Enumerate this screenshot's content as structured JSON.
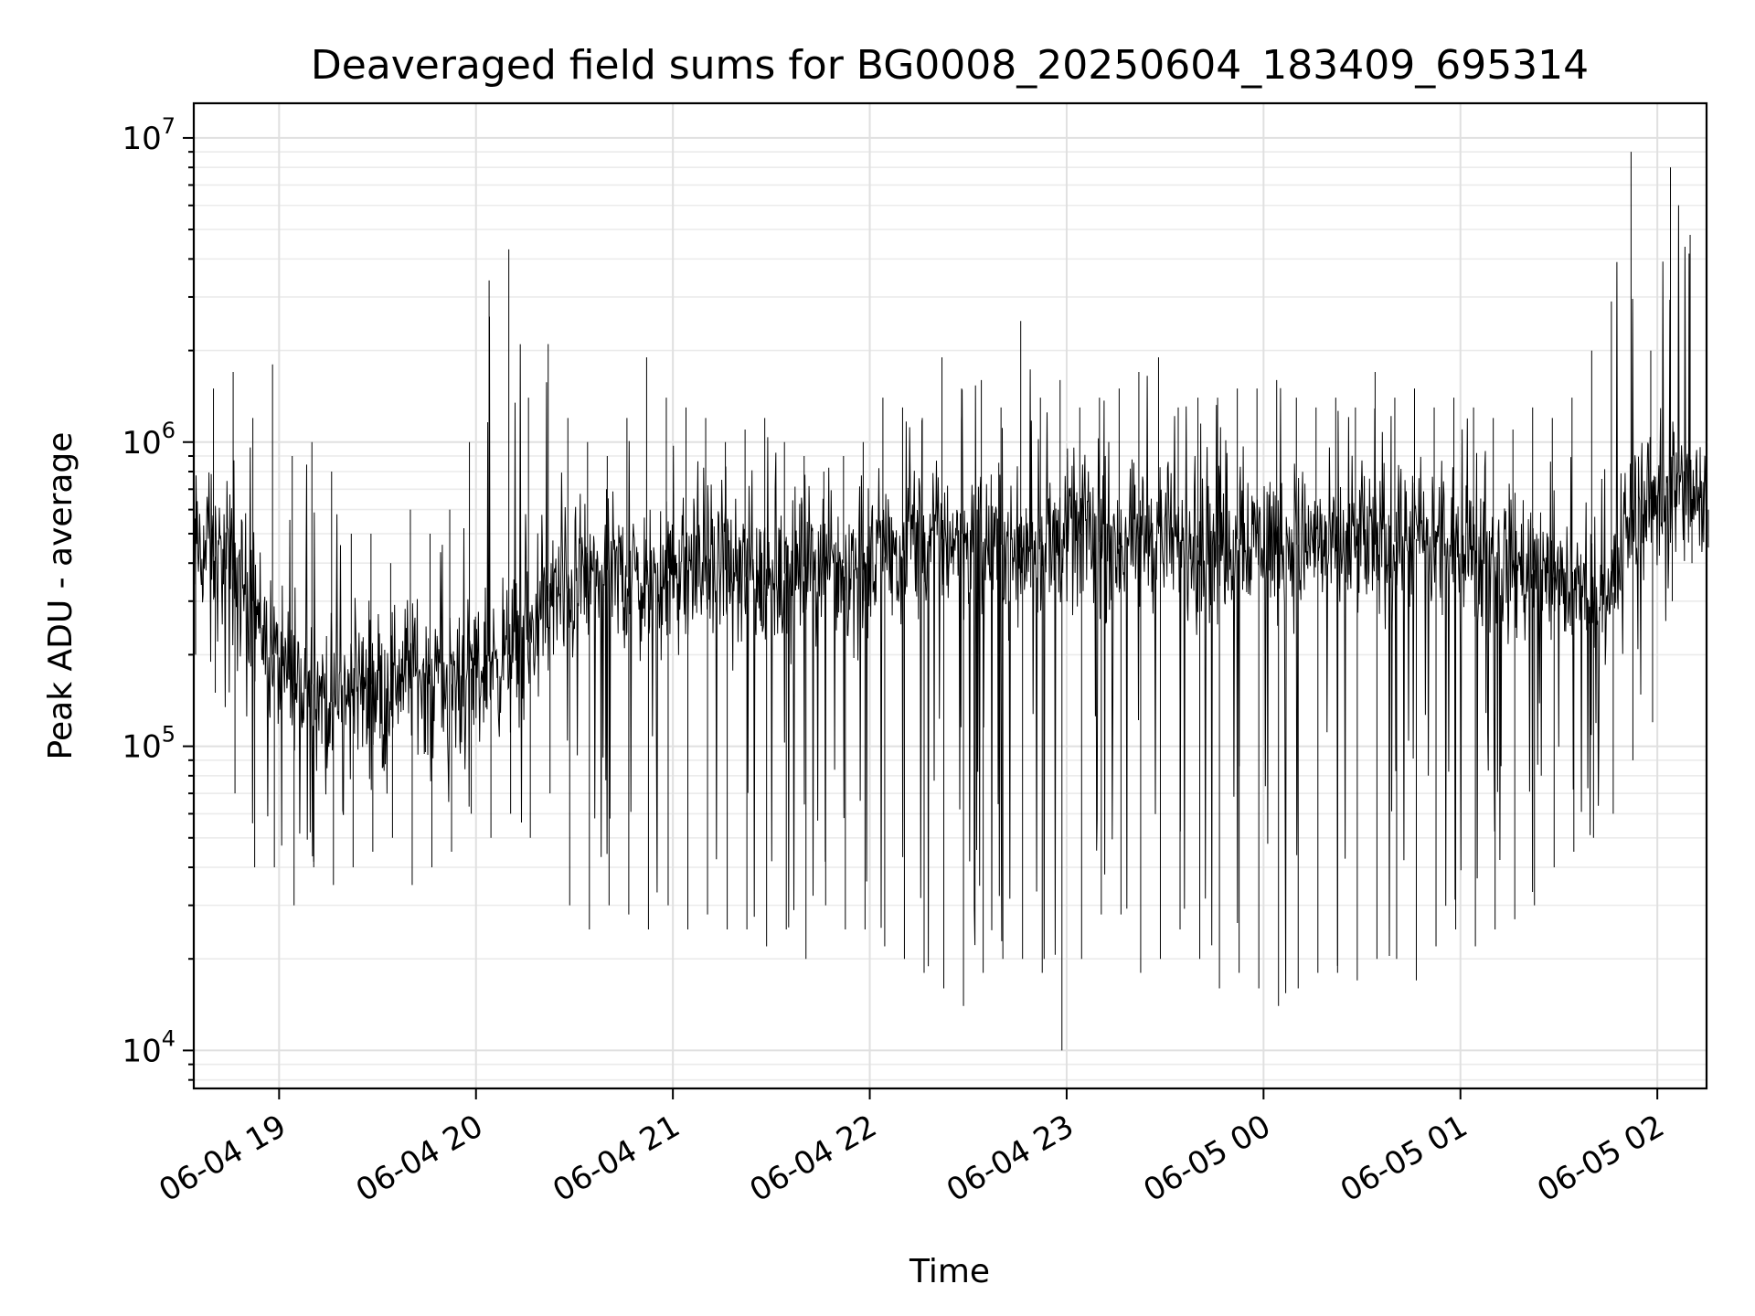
{
  "chart_data": {
    "type": "line",
    "title": "Deaveraged field sums for BG0008_20250604_183409_695314",
    "xlabel": "Time",
    "ylabel": "Peak ADU - average",
    "y_scale": "log",
    "ylim": [
      7500,
      13000000
    ],
    "xlim": [
      "2025-06-04 18:34",
      "2025-06-05 02:15"
    ],
    "x_tick_labels": [
      "06-04 19",
      "06-04 20",
      "06-04 21",
      "06-04 22",
      "06-04 23",
      "06-05 00",
      "06-05 01",
      "06-05 02"
    ],
    "x_tick_times": [
      "2025-06-04 19:00",
      "2025-06-04 20:00",
      "2025-06-04 21:00",
      "2025-06-04 22:00",
      "2025-06-04 23:00",
      "2025-06-05 00:00",
      "2025-06-05 01:00",
      "2025-06-05 02:00"
    ],
    "y_ticks": [
      {
        "value": 10000,
        "base": "10",
        "exp": "4"
      },
      {
        "value": 100000,
        "base": "10",
        "exp": "5"
      },
      {
        "value": 1000000,
        "base": "10",
        "exp": "6"
      },
      {
        "value": 10000000,
        "base": "10",
        "exp": "7"
      }
    ],
    "grid": true,
    "line_color": "#000000",
    "series": [
      {
        "x": [
          "2025-06-04 18:34",
          "2025-06-04 18:40",
          "2025-06-04 18:46",
          "2025-06-04 18:52",
          "2025-06-04 18:58",
          "2025-06-04 19:04",
          "2025-06-04 19:10",
          "2025-06-04 19:16",
          "2025-06-04 19:22",
          "2025-06-04 19:28",
          "2025-06-04 19:34",
          "2025-06-04 19:40",
          "2025-06-04 19:46",
          "2025-06-04 19:52",
          "2025-06-04 19:58",
          "2025-06-04 20:04",
          "2025-06-04 20:10",
          "2025-06-04 20:16",
          "2025-06-04 20:22",
          "2025-06-04 20:28",
          "2025-06-04 20:34",
          "2025-06-04 20:40",
          "2025-06-04 20:46",
          "2025-06-04 20:52",
          "2025-06-04 20:58",
          "2025-06-04 21:04",
          "2025-06-04 21:10",
          "2025-06-04 21:16",
          "2025-06-04 21:22",
          "2025-06-04 21:28",
          "2025-06-04 21:34",
          "2025-06-04 21:40",
          "2025-06-04 21:46",
          "2025-06-04 21:52",
          "2025-06-04 21:58",
          "2025-06-04 22:04",
          "2025-06-04 22:10",
          "2025-06-04 22:16",
          "2025-06-04 22:22",
          "2025-06-04 22:28",
          "2025-06-04 22:34",
          "2025-06-04 22:40",
          "2025-06-04 22:46",
          "2025-06-04 22:52",
          "2025-06-04 22:58",
          "2025-06-04 23:04",
          "2025-06-04 23:10",
          "2025-06-04 23:16",
          "2025-06-04 23:22",
          "2025-06-04 23:28",
          "2025-06-04 23:34",
          "2025-06-04 23:40",
          "2025-06-04 23:46",
          "2025-06-04 23:52",
          "2025-06-04 23:58",
          "2025-06-05 00:04",
          "2025-06-05 00:10",
          "2025-06-05 00:16",
          "2025-06-05 00:22",
          "2025-06-05 00:28",
          "2025-06-05 00:34",
          "2025-06-05 00:40",
          "2025-06-05 00:46",
          "2025-06-05 00:52",
          "2025-06-05 00:58",
          "2025-06-05 01:04",
          "2025-06-05 01:10",
          "2025-06-05 01:16",
          "2025-06-05 01:22",
          "2025-06-05 01:28",
          "2025-06-05 01:34",
          "2025-06-05 01:40",
          "2025-06-05 01:46",
          "2025-06-05 01:52",
          "2025-06-05 01:58",
          "2025-06-05 02:04",
          "2025-06-05 02:10",
          "2025-06-05 02:15"
        ],
        "y": [
          450000,
          420000,
          380000,
          300000,
          200000,
          150000,
          160000,
          140000,
          150000,
          160000,
          170000,
          180000,
          170000,
          160000,
          180000,
          190000,
          200000,
          220000,
          300000,
          330000,
          350000,
          380000,
          360000,
          340000,
          350000,
          380000,
          400000,
          380000,
          360000,
          340000,
          370000,
          390000,
          420000,
          400000,
          380000,
          420000,
          440000,
          450000,
          480000,
          500000,
          470000,
          460000,
          450000,
          470000,
          480000,
          500000,
          470000,
          460000,
          480000,
          500000,
          470000,
          450000,
          460000,
          480000,
          500000,
          470000,
          460000,
          480000,
          450000,
          440000,
          460000,
          470000,
          480000,
          450000,
          430000,
          440000,
          420000,
          400000,
          380000,
          360000,
          330000,
          300000,
          320000,
          600000,
          650000,
          700000,
          650000,
          600000
        ],
        "y_min": [
          200000,
          150000,
          70000,
          40000,
          40000,
          30000,
          40000,
          35000,
          40000,
          45000,
          50000,
          35000,
          40000,
          45000,
          60000,
          50000,
          60000,
          50000,
          70000,
          30000,
          25000,
          30000,
          28000,
          25000,
          30000,
          25000,
          28000,
          25000,
          25000,
          22000,
          25000,
          20000,
          30000,
          25000,
          25000,
          22000,
          20000,
          18000,
          16000,
          14000,
          18000,
          20000,
          20000,
          18000,
          10000,
          20000,
          28000,
          28000,
          18000,
          20000,
          25000,
          20000,
          16000,
          18000,
          16000,
          14000,
          16000,
          18000,
          18000,
          17000,
          20000,
          20000,
          17000,
          22000,
          25000,
          22000,
          25000,
          27000,
          30000,
          40000,
          45000,
          50000,
          60000,
          90000,
          120000,
          300000,
          400000,
          450000
        ],
        "y_max": [
          1300000,
          1500000,
          1700000,
          1200000,
          1800000,
          900000,
          1000000,
          800000,
          500000,
          500000,
          400000,
          600000,
          500000,
          600000,
          1000000,
          3400000,
          4300000,
          1400000,
          2100000,
          1200000,
          1000000,
          900000,
          1200000,
          1900000,
          1400000,
          1300000,
          1200000,
          1000000,
          1100000,
          1200000,
          1000000,
          900000,
          800000,
          900000,
          1000000,
          1400000,
          1300000,
          1200000,
          1900000,
          1500000,
          1600000,
          1300000,
          2500000,
          1400000,
          1600000,
          1300000,
          1400000,
          1500000,
          1700000,
          1900000,
          1300000,
          1400000,
          1400000,
          1500000,
          1500000,
          1600000,
          1400000,
          1300000,
          1400000,
          1300000,
          1700000,
          1400000,
          1500000,
          1300000,
          1400000,
          1300000,
          1200000,
          1100000,
          1300000,
          1200000,
          1400000,
          2000000,
          2900000,
          9000000,
          2000000,
          8000000,
          4800000,
          1500000
        ]
      }
    ]
  }
}
